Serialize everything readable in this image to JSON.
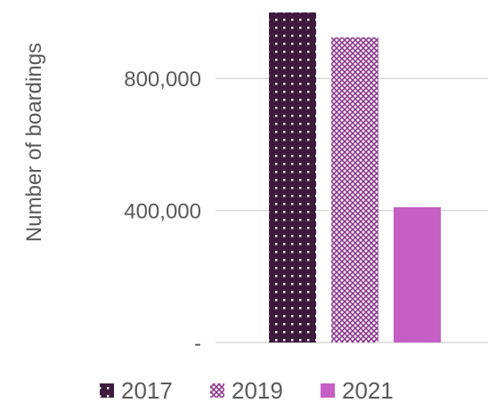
{
  "chart_data": {
    "type": "bar",
    "title": "",
    "xlabel": "",
    "ylabel": "Number of boardings",
    "ylim": [
      0,
      1000000
    ],
    "yticks": [
      {
        "value": 0,
        "label": "-"
      },
      {
        "value": 400000,
        "label": "400,000"
      },
      {
        "value": 800000,
        "label": "800,000"
      }
    ],
    "grid": true,
    "legend_position": "bottom",
    "categories": [
      ""
    ],
    "series": [
      {
        "name": "2017",
        "values": [
          1000000
        ],
        "color": "#3d1a3e",
        "pattern": "dots"
      },
      {
        "name": "2019",
        "values": [
          925000
        ],
        "color": "#8e3a8f",
        "pattern": "crosshatch"
      },
      {
        "name": "2021",
        "values": [
          410000
        ],
        "color": "#c55fc5",
        "pattern": "solid"
      }
    ]
  }
}
